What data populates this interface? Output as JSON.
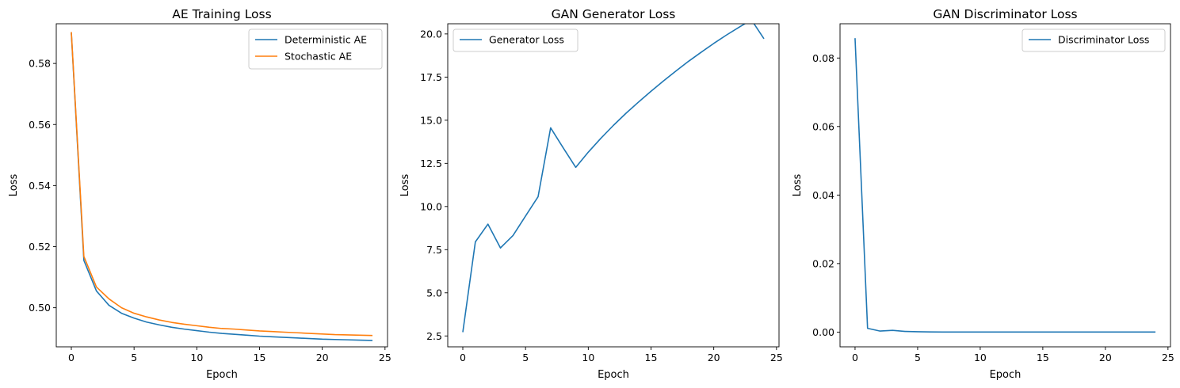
{
  "colors": {
    "blue": "#1f77b4",
    "orange": "#ff7f0e",
    "axes": "#000000",
    "legend_border": "#cccccc"
  },
  "chart_data": [
    {
      "type": "line",
      "title": "AE Training Loss",
      "xlabel": "Epoch",
      "ylabel": "Loss",
      "xlim": [
        -1.2,
        25.2
      ],
      "ylim": [
        0.4872,
        0.593
      ],
      "xticks": [
        0,
        5,
        10,
        15,
        20,
        25
      ],
      "yticks": [
        0.5,
        0.52,
        0.54,
        0.56,
        0.58
      ],
      "ytick_labels": [
        "0.50",
        "0.52",
        "0.54",
        "0.56",
        "0.58"
      ],
      "grid": false,
      "legend": "top-right",
      "x": [
        0,
        1,
        2,
        3,
        4,
        5,
        6,
        7,
        8,
        9,
        10,
        11,
        12,
        13,
        14,
        15,
        16,
        17,
        18,
        19,
        20,
        21,
        22,
        23,
        24
      ],
      "series": [
        {
          "name": "Deterministic AE",
          "color": "#1f77b4",
          "values": [
            0.59,
            0.5155,
            0.5055,
            0.5008,
            0.4982,
            0.4966,
            0.4953,
            0.4944,
            0.4936,
            0.493,
            0.4925,
            0.492,
            0.4916,
            0.4913,
            0.491,
            0.4907,
            0.4905,
            0.4903,
            0.4901,
            0.4899,
            0.4897,
            0.4896,
            0.4895,
            0.4894,
            0.4893
          ]
        },
        {
          "name": "Stochastic AE",
          "color": "#ff7f0e",
          "values": [
            0.5903,
            0.5168,
            0.5068,
            0.5029,
            0.5,
            0.4982,
            0.497,
            0.496,
            0.4952,
            0.4946,
            0.4941,
            0.4936,
            0.4932,
            0.493,
            0.4927,
            0.4924,
            0.4922,
            0.492,
            0.4918,
            0.4916,
            0.4914,
            0.4912,
            0.4911,
            0.491,
            0.4909
          ]
        }
      ]
    },
    {
      "type": "line",
      "title": "GAN Generator Loss",
      "xlabel": "Epoch",
      "ylabel": "Loss",
      "xlim": [
        -1.2,
        25.2
      ],
      "ylim": [
        1.87,
        20.59
      ],
      "xticks": [
        0,
        5,
        10,
        15,
        20,
        25
      ],
      "yticks": [
        2.5,
        5.0,
        7.5,
        10.0,
        12.5,
        15.0,
        17.5,
        20.0
      ],
      "ytick_labels": [
        "2.5",
        "5.0",
        "7.5",
        "10.0",
        "12.5",
        "15.0",
        "17.5",
        "20.0"
      ],
      "grid": false,
      "legend": "top-left",
      "x": [
        0,
        1,
        2,
        3,
        4,
        5,
        6,
        7,
        8,
        9,
        10,
        11,
        12,
        13,
        14,
        15,
        16,
        17,
        18,
        19,
        20,
        21,
        22,
        23,
        24
      ],
      "series": [
        {
          "name": "Generator Loss",
          "color": "#1f77b4",
          "values": [
            2.72,
            7.95,
            8.98,
            7.6,
            8.32,
            9.45,
            10.57,
            14.56,
            13.4,
            12.27,
            13.15,
            13.95,
            14.7,
            15.4,
            16.05,
            16.68,
            17.28,
            17.86,
            18.42,
            18.94,
            19.45,
            19.93,
            20.38,
            20.82,
            19.72
          ]
        }
      ]
    },
    {
      "type": "line",
      "title": "GAN Discriminator Loss",
      "xlabel": "Epoch",
      "ylabel": "Loss",
      "xlim": [
        -1.2,
        25.2
      ],
      "ylim": [
        -0.0043,
        0.09
      ],
      "xticks": [
        0,
        5,
        10,
        15,
        20,
        25
      ],
      "yticks": [
        0.0,
        0.02,
        0.04,
        0.06,
        0.08
      ],
      "ytick_labels": [
        "0.00",
        "0.02",
        "0.04",
        "0.06",
        "0.08"
      ],
      "grid": false,
      "legend": "top-right",
      "x": [
        0,
        1,
        2,
        3,
        4,
        5,
        6,
        7,
        8,
        9,
        10,
        11,
        12,
        13,
        14,
        15,
        16,
        17,
        18,
        19,
        20,
        21,
        22,
        23,
        24
      ],
      "series": [
        {
          "name": "Discriminator Loss",
          "color": "#1f77b4",
          "values": [
            0.0858,
            0.0011,
            0.0003,
            0.0005,
            0.0002,
            0.0001,
            5e-05,
            3e-05,
            2e-05,
            2e-05,
            1e-05,
            1e-05,
            1e-05,
            1e-05,
            1e-05,
            1e-05,
            1e-05,
            1e-05,
            1e-05,
            1e-05,
            1e-05,
            1e-05,
            1e-05,
            1e-05,
            1e-05
          ]
        }
      ]
    }
  ]
}
